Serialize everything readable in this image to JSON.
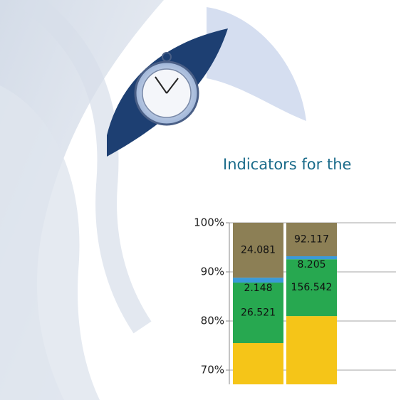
{
  "chart_data": {
    "type": "bar",
    "stack": "percent",
    "title": "Indicators for the",
    "categories": [
      null,
      null
    ],
    "series": [
      {
        "color": "#f5c518",
        "values": [
          162.6,
          1095
        ]
      },
      {
        "color": "#27a850",
        "values": [
          26.521,
          156.542
        ]
      },
      {
        "color": "#3a9ad9",
        "values": [
          2.148,
          8.205
        ]
      },
      {
        "color": "#8c7f55",
        "values": [
          24.081,
          92.117
        ]
      }
    ],
    "ylim": [
      67.1,
      100
    ],
    "yticks": [
      {
        "value": 70,
        "label": "70%"
      },
      {
        "value": 80,
        "label": "80%"
      },
      {
        "value": 90,
        "label": "90%"
      },
      {
        "value": 100,
        "label": "100%"
      }
    ],
    "grid": true
  }
}
